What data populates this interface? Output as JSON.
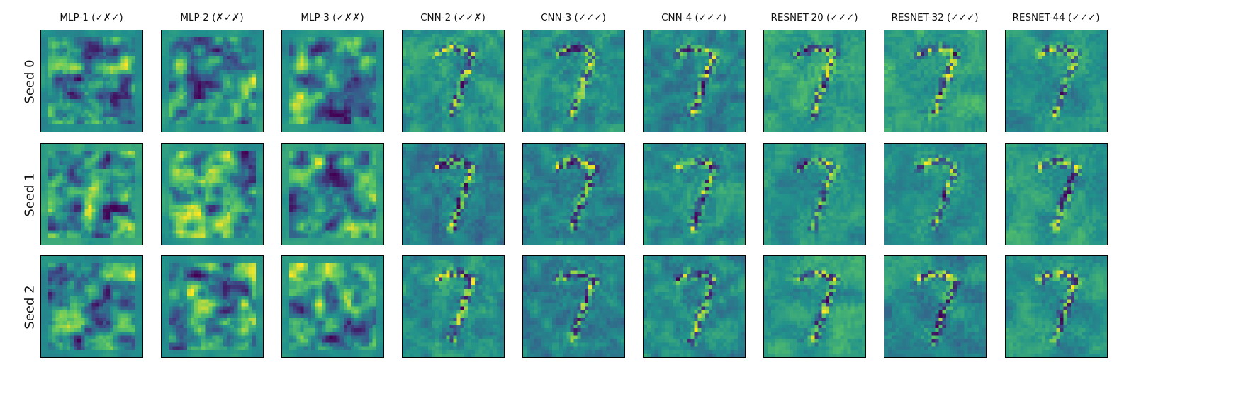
{
  "columns": [
    {
      "title": "MLP-1 (✓✗✓)",
      "family": "mlp"
    },
    {
      "title": "MLP-2 (✗✓✗)",
      "family": "mlp"
    },
    {
      "title": "MLP-3 (✓✗✗)",
      "family": "mlp"
    },
    {
      "title": "CNN-2 (✓✓✗)",
      "family": "cnn"
    },
    {
      "title": "CNN-3 (✓✓✓)",
      "family": "cnn"
    },
    {
      "title": "CNN-4 (✓✓✓)",
      "family": "cnn"
    },
    {
      "title": "RESNET-20 (✓✓✓)",
      "family": "resnet"
    },
    {
      "title": "RESNET-32 (✓✓✓)",
      "family": "resnet"
    },
    {
      "title": "RESNET-44 (✓✓✓)",
      "family": "resnet"
    }
  ],
  "rows": [
    {
      "label": "Seed 0"
    },
    {
      "label": "Seed 1"
    },
    {
      "label": "Seed 2"
    }
  ],
  "colormap": {
    "name": "viridis",
    "stops": [
      "#440154",
      "#3b528b",
      "#21918c",
      "#5ec962",
      "#fde725"
    ]
  },
  "panel_resolution": 28
}
